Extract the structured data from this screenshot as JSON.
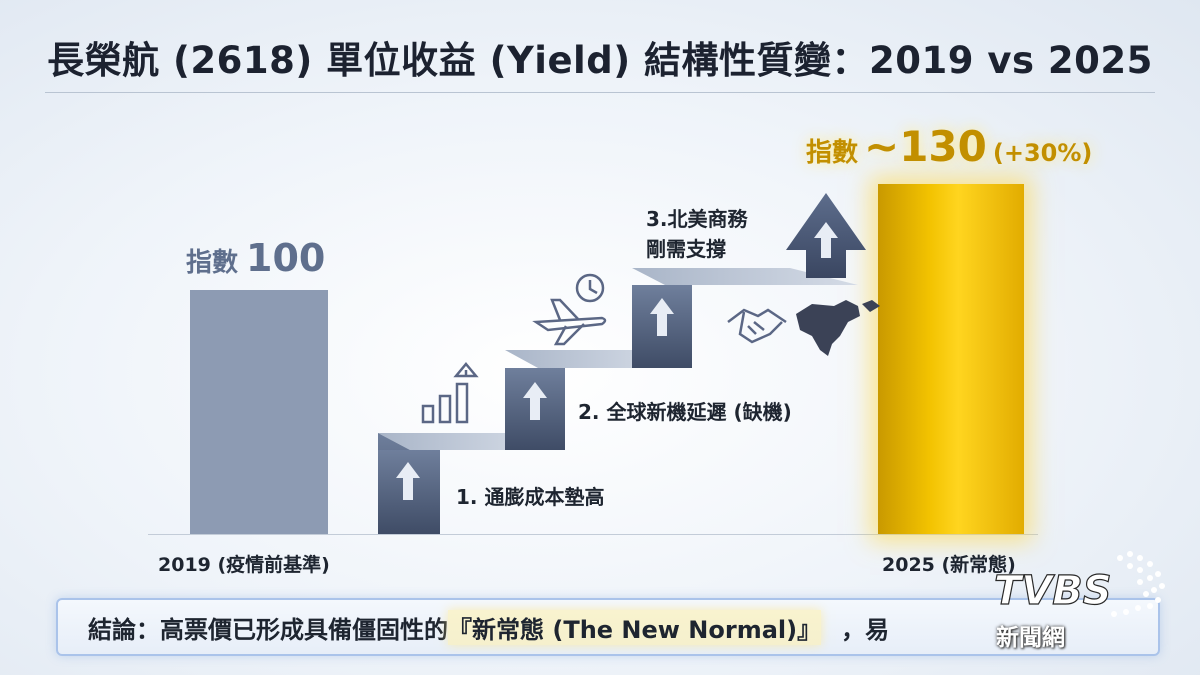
{
  "title": "長榮航 (2618) 單位收益 (Yield) 結構性質變：2019 vs 2025",
  "chart_data": {
    "type": "bar",
    "title": "長榮航 (2618) 單位收益 (Yield) 結構性質變：2019 vs 2025",
    "categories": [
      "2019 (疫情前基準)",
      "2025 (新常態)"
    ],
    "values": [
      100,
      130
    ],
    "ylim": [
      0,
      150
    ],
    "grid": false,
    "data_labels": [
      {
        "prefix": "指數",
        "value": "100",
        "suffix": ""
      },
      {
        "prefix": "指數",
        "value": "~130",
        "suffix": "(+30%)"
      }
    ],
    "colors": [
      "#8d9bb3",
      "#f2c200"
    ]
  },
  "steps": [
    {
      "label": "1. 通膨成本墊高",
      "icon": "bar-growth-icon"
    },
    {
      "label": "2. 全球新機延遲 (缺機)",
      "icon": "airplane-clock-icon"
    },
    {
      "label_lines": [
        "3.北美商務",
        "剛需支撐"
      ],
      "icon": "handshake-map-icon"
    }
  ],
  "conclusion": {
    "prefix": "結論：高票價已形成具備僵固性的",
    "highlight": "『新常態 (The New Normal)』",
    "tail": "，易"
  },
  "logo": {
    "brand": "TVBS",
    "sub": "新聞網"
  }
}
